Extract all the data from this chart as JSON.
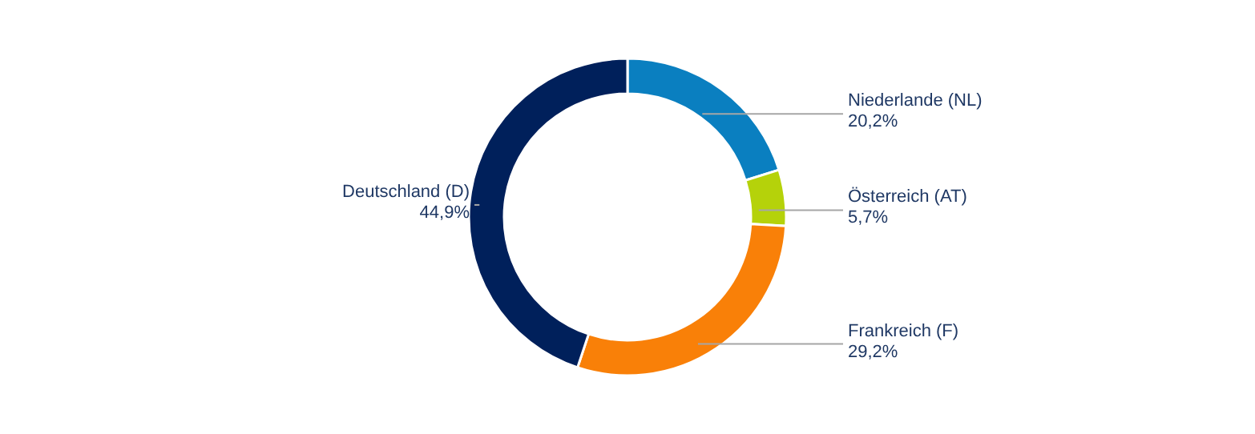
{
  "chart_data": {
    "type": "donut",
    "categories": [
      "Niederlande (NL)",
      "Österreich (AT)",
      "Frankreich (F)",
      "Deutschland (D)"
    ],
    "values": [
      20.2,
      5.7,
      29.2,
      44.9
    ],
    "value_labels": [
      "20,2%",
      "5,7%",
      "29,2%",
      "44,9%"
    ],
    "colors": [
      "#0a7fc0",
      "#b5d20a",
      "#f98008",
      "#00205b"
    ]
  }
}
